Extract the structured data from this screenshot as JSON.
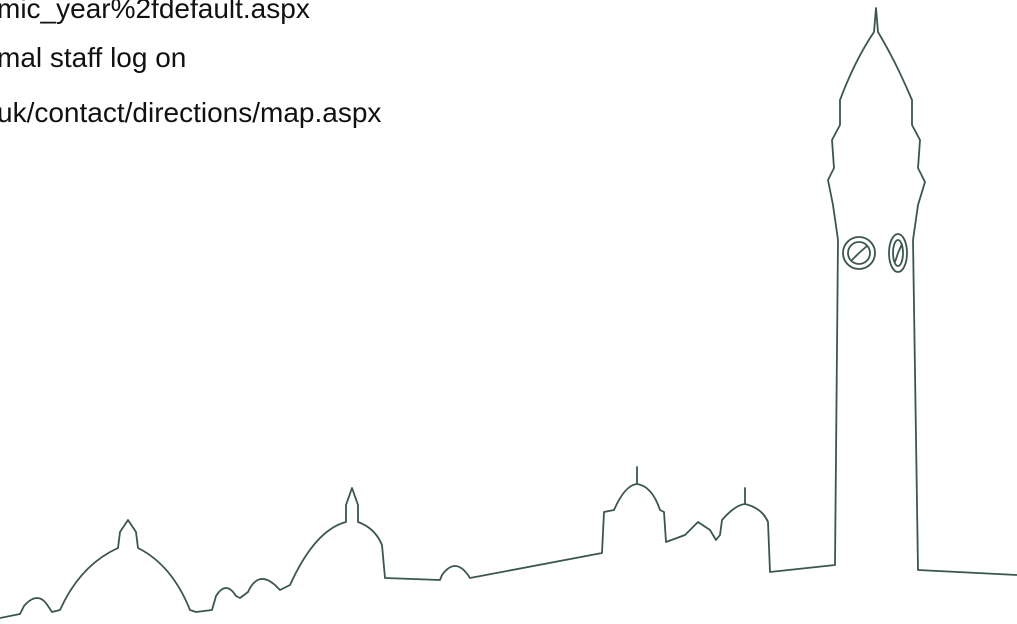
{
  "lines": [
    "mic_year%2fdefault.aspx",
    "mal staff log on",
    "uk/contact/directions/map.aspx"
  ]
}
